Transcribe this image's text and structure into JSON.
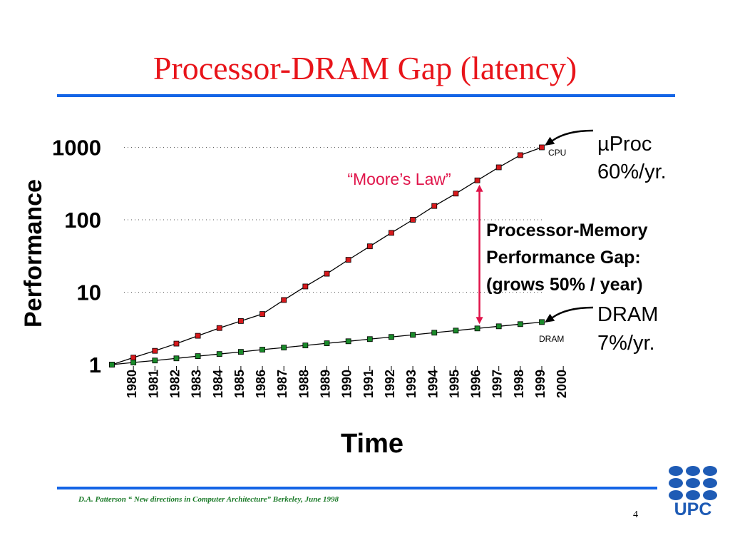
{
  "slide": {
    "title": "Processor-DRAM Gap (latency)",
    "footer": "D.A. Patterson “ New directions in Computer Architecture” Berkeley, June 1998",
    "page_number": "4",
    "logo_text": "UPC"
  },
  "colors": {
    "title": "#e8141a",
    "rule": "#1465e6",
    "cpu_marker": "#d7191c",
    "dram_marker": "#1a8a2a",
    "gap_arrow": "#e0144a",
    "footer": "#1a7a28",
    "logo": "#1e5bb5"
  },
  "chart_data": {
    "type": "line",
    "ylabel": "Performance",
    "xlabel": "Time",
    "y_scale": "log",
    "ylim": [
      1,
      1000
    ],
    "yticks": [
      "1000",
      "100",
      "10",
      "1"
    ],
    "xlim": [
      1979,
      2000
    ],
    "categories": [
      "1980",
      "1981",
      "1982",
      "1983",
      "1984",
      "1985",
      "1986",
      "1987",
      "1988",
      "1989",
      "1990",
      "1991",
      "1992",
      "1993",
      "1994",
      "1995",
      "1996",
      "1997",
      "1998",
      "1999",
      "2000"
    ],
    "grid": "dotted horizontal at 10, 100, 1000",
    "series": [
      {
        "name": "CPU",
        "x": [
          1979,
          1980,
          1981,
          1982,
          1983,
          1984,
          1985,
          1986,
          1987,
          1988,
          1989,
          1990,
          1991,
          1992,
          1993,
          1994,
          1995,
          1996,
          1997,
          1998,
          1999
        ],
        "values": [
          1,
          1.25,
          1.55,
          1.95,
          2.5,
          3.2,
          4.0,
          5.0,
          7.8,
          12,
          18,
          28,
          43,
          66,
          100,
          155,
          230,
          350,
          530,
          780,
          1000
        ]
      },
      {
        "name": "DRAM",
        "x": [
          1979,
          1980,
          1981,
          1982,
          1983,
          1984,
          1985,
          1986,
          1987,
          1988,
          1989,
          1990,
          1991,
          1992,
          1993,
          1994,
          1995,
          1996,
          1997,
          1998,
          1999
        ],
        "values": [
          1,
          1.07,
          1.14,
          1.22,
          1.31,
          1.4,
          1.5,
          1.61,
          1.72,
          1.84,
          1.97,
          2.1,
          2.25,
          2.41,
          2.58,
          2.76,
          2.95,
          3.16,
          3.38,
          3.62,
          3.87
        ]
      }
    ],
    "annotations": {
      "cpu_label": "µProc",
      "cpu_rate": "60%/yr.",
      "cpu_small": "CPU",
      "dram_label": "DRAM",
      "dram_rate": "7%/yr.",
      "dram_small": "DRAM",
      "moores_law": "“Moore’s Law”",
      "gap_title_1": "Processor-Memory",
      "gap_title_2": "Performance Gap:",
      "gap_title_3": "(grows 50% / year)",
      "gap_year": 1996
    }
  }
}
